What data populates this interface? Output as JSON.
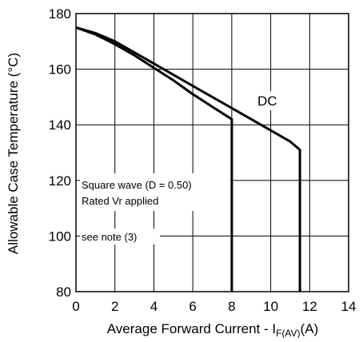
{
  "chart_data": {
    "type": "line",
    "xlabel_main": "Average Forward Current - I",
    "xlabel_sub": "F(AV)",
    "xlabel_tail": "(A)",
    "ylabel": "Allowable Case Temperature (°C)",
    "xlim": [
      0,
      14
    ],
    "ylim": [
      80,
      180
    ],
    "x_ticks": [
      "0",
      "2",
      "4",
      "6",
      "8",
      "10",
      "12",
      "14"
    ],
    "y_ticks": [
      "80",
      "100",
      "120",
      "140",
      "160",
      "180"
    ],
    "grid": true,
    "series": [
      {
        "name": "DC",
        "x": [
          0,
          1,
          2,
          3,
          4,
          5,
          6,
          7,
          8,
          9,
          10,
          11,
          11.5,
          11.5
        ],
        "y": [
          175,
          173,
          170,
          166,
          162,
          158,
          154,
          150,
          146,
          142,
          138,
          134,
          131,
          80
        ]
      },
      {
        "name": "",
        "x": [
          0,
          1,
          2,
          3,
          4,
          5,
          6,
          7,
          8,
          8
        ],
        "y": [
          175,
          172.5,
          169,
          165,
          160.5,
          156,
          151,
          146.5,
          142,
          80
        ]
      }
    ],
    "annotations": [
      {
        "text": "Square wave (D = 0.50)"
      },
      {
        "text": "Rated Vr  applied"
      },
      {
        "text": "see note (3)"
      },
      {
        "text": "DC"
      }
    ]
  }
}
